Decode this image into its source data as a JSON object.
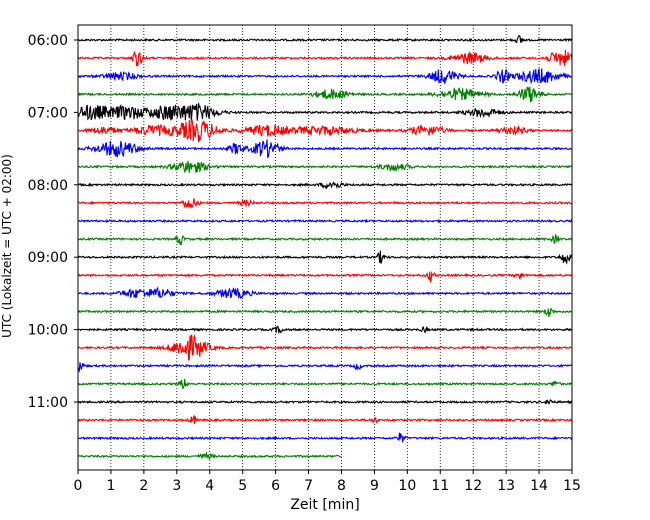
{
  "chart_data": {
    "type": "line",
    "title": "",
    "xlabel": "Zeit  [min]",
    "ylabel": "UTC (Lokalzeit = UTC + 02:00)",
    "xlim": [
      0,
      15
    ],
    "x_ticks": [
      "0",
      "1",
      "2",
      "3",
      "4",
      "5",
      "6",
      "7",
      "8",
      "9",
      "10",
      "11",
      "12",
      "13",
      "14",
      "15"
    ],
    "y_tick_labels": [
      "06:00",
      "07:00",
      "08:00",
      "09:00",
      "10:00",
      "11:00"
    ],
    "trace_minutes": 15,
    "grid": {
      "vertical_dotted": true
    },
    "colors": [
      "#000000",
      "#ff0000",
      "#0000ff",
      "#008000"
    ],
    "traces": [
      {
        "start": "06:00",
        "end_min": 15,
        "color": "#000000",
        "events": [
          [
            13.4,
            0.7,
            0.1
          ]
        ]
      },
      {
        "start": "06:15",
        "end_min": 15,
        "color": "#ff0000",
        "events": [
          [
            1.8,
            1.4,
            0.15
          ],
          [
            11.9,
            0.9,
            0.5
          ],
          [
            14.7,
            1.3,
            0.4
          ]
        ]
      },
      {
        "start": "06:30",
        "end_min": 15,
        "color": "#0000ff",
        "events": [
          [
            1.3,
            0.6,
            0.5
          ],
          [
            11.1,
            1.2,
            0.4
          ],
          [
            12.9,
            1.1,
            0.2
          ],
          [
            14.0,
            1.2,
            0.6
          ]
        ]
      },
      {
        "start": "06:45",
        "end_min": 15,
        "color": "#008000",
        "events": [
          [
            7.7,
            0.8,
            0.5
          ],
          [
            11.6,
            0.9,
            0.6
          ],
          [
            13.7,
            1.3,
            0.3
          ]
        ]
      },
      {
        "start": "07:00",
        "end_min": 15,
        "color": "#000000",
        "events": [
          [
            0.4,
            1.2,
            0.5
          ],
          [
            1.5,
            1.1,
            0.6
          ],
          [
            2.7,
            1.1,
            0.5
          ],
          [
            3.6,
            1.4,
            0.6
          ],
          [
            12.3,
            0.7,
            0.5
          ]
        ]
      },
      {
        "start": "07:15",
        "end_min": 15,
        "color": "#ff0000",
        "events": [
          [
            0.8,
            0.6,
            0.4
          ],
          [
            2.3,
            0.8,
            0.6
          ],
          [
            3.6,
            1.8,
            0.6
          ],
          [
            5.7,
            0.9,
            0.6
          ],
          [
            7.4,
            0.7,
            1.0
          ],
          [
            10.6,
            0.8,
            0.5
          ],
          [
            13.2,
            0.6,
            0.4
          ]
        ]
      },
      {
        "start": "07:30",
        "end_min": 15,
        "color": "#0000ff",
        "events": [
          [
            1.2,
            1.3,
            0.6
          ],
          [
            4.8,
            0.9,
            0.2
          ],
          [
            5.7,
            1.4,
            0.4
          ]
        ]
      },
      {
        "start": "07:45",
        "end_min": 15,
        "color": "#008000",
        "events": [
          [
            3.4,
            1.0,
            0.5
          ],
          [
            9.6,
            0.6,
            0.4
          ]
        ]
      },
      {
        "start": "08:00",
        "end_min": 15,
        "color": "#000000",
        "events": [
          [
            7.7,
            0.6,
            0.3
          ]
        ]
      },
      {
        "start": "08:15",
        "end_min": 15,
        "color": "#ff0000",
        "events": [
          [
            3.4,
            1.0,
            0.2
          ],
          [
            5.1,
            0.4,
            0.2
          ]
        ]
      },
      {
        "start": "08:30",
        "end_min": 15,
        "color": "#0000ff",
        "events": []
      },
      {
        "start": "08:45",
        "end_min": 15,
        "color": "#008000",
        "events": [
          [
            3.1,
            0.9,
            0.1
          ],
          [
            14.5,
            0.7,
            0.1
          ]
        ]
      },
      {
        "start": "09:00",
        "end_min": 15,
        "color": "#000000",
        "events": [
          [
            9.2,
            1.0,
            0.1
          ],
          [
            14.8,
            1.0,
            0.15
          ]
        ]
      },
      {
        "start": "09:15",
        "end_min": 15,
        "color": "#ff0000",
        "events": [
          [
            10.7,
            1.0,
            0.1
          ],
          [
            13.4,
            0.7,
            0.1
          ]
        ]
      },
      {
        "start": "09:30",
        "end_min": 15,
        "color": "#0000ff",
        "events": [
          [
            1.7,
            0.7,
            0.4
          ],
          [
            2.5,
            0.8,
            0.4
          ],
          [
            4.7,
            0.8,
            0.5
          ]
        ]
      },
      {
        "start": "09:45",
        "end_min": 15,
        "color": "#008000",
        "events": [
          [
            14.3,
            1.0,
            0.1
          ]
        ]
      },
      {
        "start": "10:00",
        "end_min": 15,
        "color": "#000000",
        "events": [
          [
            6.1,
            0.5,
            0.15
          ],
          [
            10.5,
            0.4,
            0.1
          ]
        ]
      },
      {
        "start": "10:15",
        "end_min": 15,
        "color": "#ff0000",
        "events": [
          [
            3.4,
            2.0,
            0.5
          ]
        ]
      },
      {
        "start": "10:30",
        "end_min": 15,
        "color": "#0000ff",
        "events": [
          [
            0.05,
            0.9,
            0.1
          ],
          [
            8.5,
            0.6,
            0.1
          ]
        ]
      },
      {
        "start": "10:45",
        "end_min": 15,
        "color": "#008000",
        "events": [
          [
            3.2,
            0.9,
            0.1
          ],
          [
            14.5,
            0.6,
            0.1
          ]
        ]
      },
      {
        "start": "11:00",
        "end_min": 15,
        "color": "#000000",
        "events": [
          [
            14.3,
            0.5,
            0.1
          ]
        ]
      },
      {
        "start": "11:15",
        "end_min": 15,
        "color": "#ff0000",
        "events": [
          [
            3.5,
            0.7,
            0.1
          ],
          [
            9.0,
            0.4,
            0.1
          ]
        ]
      },
      {
        "start": "11:30",
        "end_min": 15,
        "color": "#0000ff",
        "events": [
          [
            9.8,
            0.9,
            0.1
          ]
        ]
      },
      {
        "start": "11:45",
        "end_min": 8.0,
        "color": "#008000",
        "events": [
          [
            3.9,
            0.4,
            0.2
          ]
        ]
      }
    ]
  }
}
